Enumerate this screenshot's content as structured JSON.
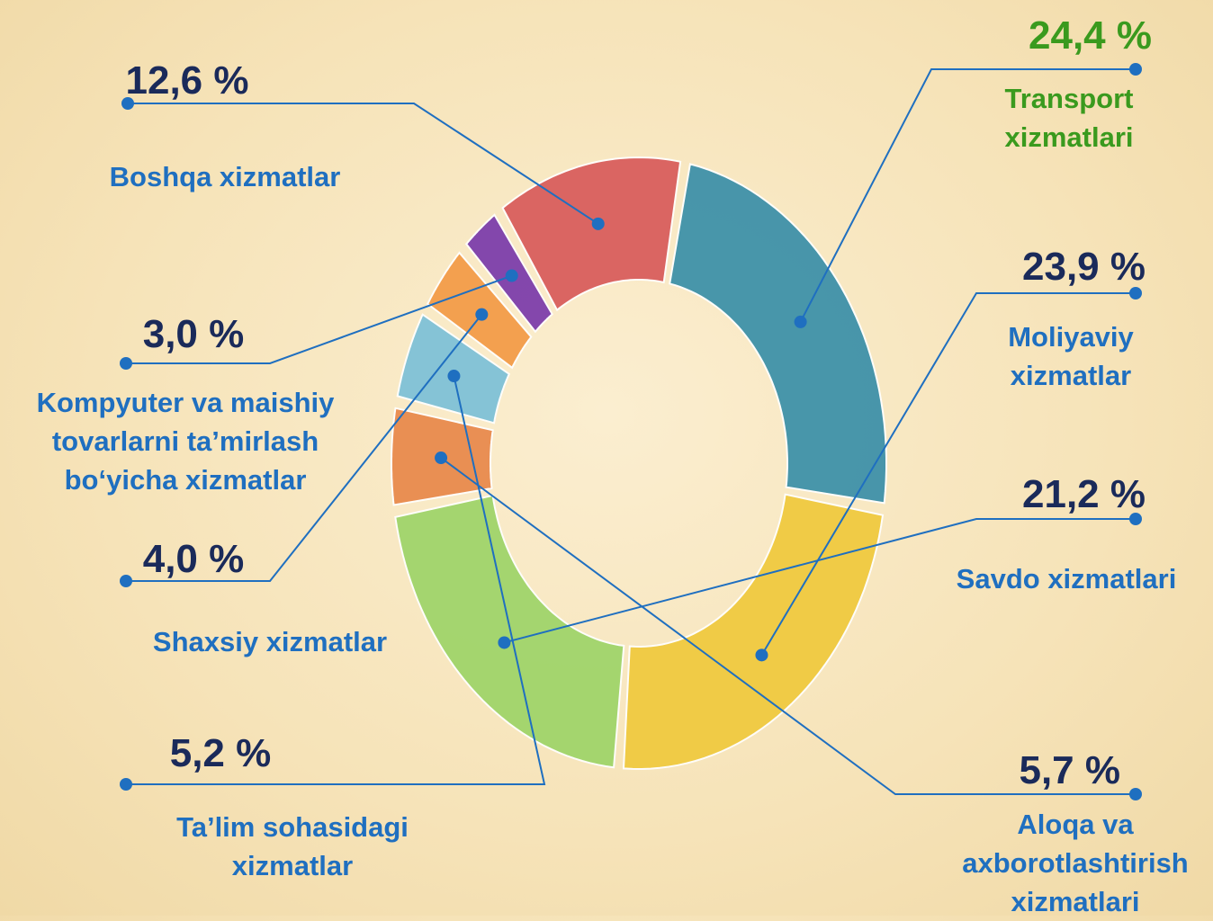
{
  "chart_data": {
    "type": "donut",
    "categories": [
      "Transport xizmatlari",
      "Moliyaviy xizmatlar",
      "Savdo xizmatlari",
      "Aloqa va axborotlashtirish xizmatlari",
      "Ta’lim  sohasidagi xizmatlar",
      "Shaxsiy xizmatlar",
      "Kompyuter va maishiy tovarlarni ta’mirlash bo‘yicha xizmatlar",
      "Boshqa xizmatlar"
    ],
    "values": [
      24.4,
      23.9,
      21.2,
      5.7,
      5.2,
      4.0,
      3.0,
      12.6
    ],
    "value_labels": [
      "24,4 %",
      "23,9 %",
      "21,2 %",
      "5,7 %",
      "5,2 %",
      "4,0 %",
      "3,0 %",
      "12,6 %"
    ],
    "colors": [
      "#3a8fa8",
      "#f0c93c",
      "#9dd468",
      "#e8884a",
      "#7cc0d8",
      "#f39a45",
      "#7a3aaa",
      "#d85a5a"
    ]
  }
}
